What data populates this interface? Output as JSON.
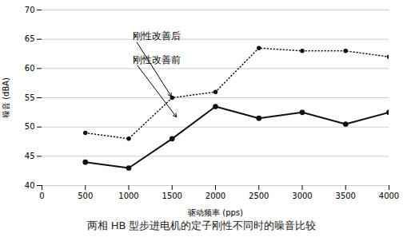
{
  "chart_data": {
    "type": "line",
    "title": "两相 HB 型步进电机的定子刚性不同时的噪音比较",
    "x_label": "驱动频率 (pps)",
    "y_label": "噪音 (dBA)",
    "x": [
      500,
      1000,
      1500,
      2000,
      2500,
      3000,
      3500,
      4000
    ],
    "series": [
      {
        "name": "刚性改善后",
        "color": "#111111",
        "line_style": "dotted",
        "marker": "circle",
        "values": [
          49.0,
          48.0,
          55.0,
          56.0,
          63.5,
          63.0,
          63.0,
          62.0
        ]
      },
      {
        "name": "刚性改善前",
        "color": "#111111",
        "line_style": "solid",
        "marker": "circle",
        "values": [
          44.0,
          43.0,
          48.0,
          53.5,
          51.5,
          52.5,
          50.5,
          52.5
        ]
      }
    ],
    "xlim": [
      0,
      4000
    ],
    "ylim": [
      40,
      70
    ],
    "xticks": [
      0,
      500,
      1000,
      1500,
      2000,
      2500,
      3000,
      3500,
      4000
    ],
    "yticks": [
      40,
      45,
      50,
      55,
      60,
      65,
      70
    ],
    "grid": true,
    "annotations": [
      {
        "text": "刚性改善后",
        "xy": [
          1500,
          55.0
        ],
        "xytext": [
          1050,
          65.5
        ]
      },
      {
        "text": "刚性改善前",
        "xy": [
          1560,
          51.5
        ],
        "xytext": [
          1050,
          61.5
        ]
      }
    ]
  }
}
